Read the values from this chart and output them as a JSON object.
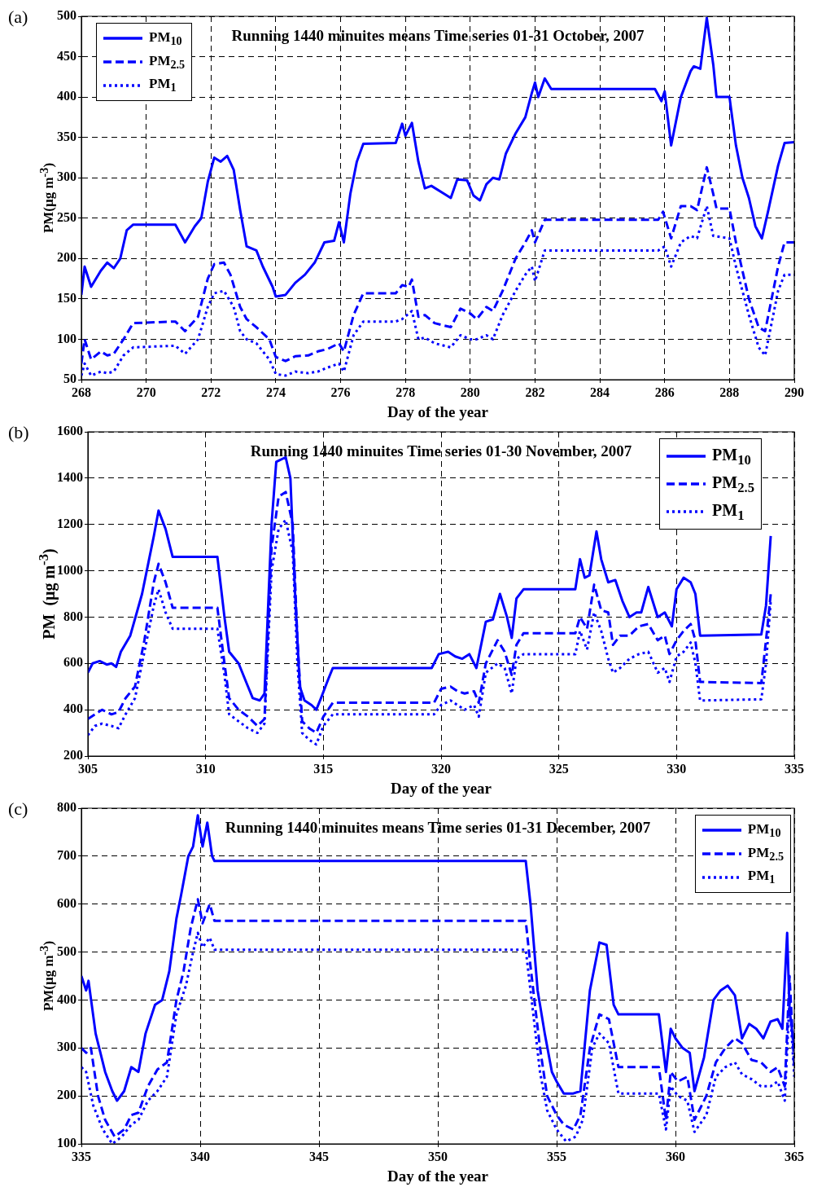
{
  "chart_data": [
    {
      "type": "line",
      "title": "Running 1440 minuites means Time series 01-31 October, 2007",
      "xlabel": "Day of the year",
      "ylabel": "PM(μg m$^{-3}$)",
      "xlim": [
        268,
        290
      ],
      "ylim": [
        50,
        500
      ],
      "xticks": [
        268,
        270,
        272,
        274,
        276,
        278,
        280,
        282,
        284,
        286,
        288,
        290
      ],
      "yticks": [
        50,
        100,
        150,
        200,
        250,
        300,
        350,
        400,
        450,
        500
      ],
      "grid": true,
      "legend": "top left",
      "annotations": [
        "(a)"
      ],
      "series": [
        {
          "name": "PM$_{10}$",
          "color": "#0000ff",
          "line_style": "solid",
          "x": [
            268,
            268.1,
            268.3,
            268.6,
            268.8,
            269,
            269.2,
            269.4,
            269.6,
            270.9,
            271.2,
            271.5,
            271.7,
            271.9,
            272.1,
            272.3,
            272.5,
            272.7,
            272.9,
            273.1,
            273.4,
            273.6,
            273.9,
            274,
            274.3,
            274.6,
            274.9,
            275.2,
            275.5,
            275.8,
            275.95,
            276.1,
            276.3,
            276.5,
            276.7,
            277.7,
            277.9,
            278,
            278.2,
            278.4,
            278.6,
            278.8,
            279.2,
            279.4,
            279.6,
            279.9,
            280.1,
            280.3,
            280.5,
            280.7,
            280.9,
            281.1,
            281.4,
            281.7,
            281.9,
            282,
            282.1,
            282.3,
            282.5,
            285.7,
            285.9,
            286,
            286.2,
            286.5,
            286.8,
            286.9,
            287.1,
            287.3,
            287.5,
            287.6,
            288,
            288.2,
            288.4,
            288.6,
            288.8,
            289,
            289.2,
            289.5,
            289.7,
            290
          ],
          "values": [
            155,
            190,
            165,
            185,
            195,
            188,
            200,
            235,
            242,
            242,
            220,
            240,
            250,
            295,
            325,
            320,
            327,
            310,
            260,
            215,
            210,
            190,
            165,
            153,
            155,
            170,
            180,
            195,
            220,
            222,
            245,
            220,
            280,
            320,
            342,
            343,
            367,
            352,
            368,
            320,
            287,
            290,
            280,
            275,
            298,
            297,
            278,
            272,
            292,
            300,
            298,
            330,
            355,
            375,
            405,
            418,
            400,
            423,
            410,
            410,
            395,
            407,
            340,
            400,
            432,
            438,
            435,
            498,
            440,
            400,
            400,
            340,
            300,
            275,
            240,
            225,
            260,
            315,
            343,
            344
          ]
        },
        {
          "name": "PM$_{2.5}$",
          "color": "#0000ff",
          "line_style": "dashed",
          "x": [
            268,
            268.1,
            268.3,
            268.6,
            268.8,
            269,
            269.3,
            269.6,
            270.9,
            271.2,
            271.6,
            271.9,
            272.1,
            272.4,
            272.6,
            272.9,
            273.1,
            273.4,
            273.8,
            274,
            274.3,
            274.6,
            275,
            275.3,
            275.6,
            275.95,
            276.1,
            276.4,
            276.7,
            277.7,
            277.9,
            278.1,
            278.2,
            278.4,
            278.6,
            278.9,
            279.4,
            279.7,
            280,
            280.2,
            280.5,
            280.7,
            281,
            281.4,
            281.7,
            281.9,
            282,
            282.3,
            285.8,
            285.95,
            286.2,
            286.5,
            286.8,
            287,
            287.3,
            287.5,
            287.6,
            288,
            288.2,
            288.6,
            288.9,
            289.1,
            289.5,
            289.7,
            290
          ],
          "values": [
            70,
            100,
            75,
            85,
            80,
            82,
            100,
            120,
            122,
            110,
            128,
            175,
            193,
            195,
            180,
            140,
            125,
            115,
            100,
            78,
            73,
            79,
            80,
            85,
            88,
            95,
            85,
            130,
            157,
            157,
            167,
            165,
            174,
            128,
            130,
            120,
            115,
            138,
            132,
            125,
            140,
            135,
            160,
            200,
            220,
            235,
            220,
            248,
            248,
            258,
            225,
            265,
            265,
            260,
            313,
            280,
            262,
            262,
            220,
            150,
            115,
            110,
            190,
            220,
            220
          ]
        },
        {
          "name": "PM$_{1}$",
          "color": "#0000ff",
          "line_style": "dotted",
          "x": [
            268,
            268.1,
            268.3,
            268.6,
            268.8,
            269,
            269.3,
            269.6,
            270.9,
            271.2,
            271.6,
            271.9,
            272.1,
            272.4,
            272.7,
            272.9,
            273.1,
            273.4,
            273.8,
            274,
            274.3,
            274.6,
            275,
            275.3,
            275.6,
            275.95,
            276.1,
            276.4,
            276.7,
            277.7,
            277.9,
            278.2,
            278.4,
            278.6,
            278.9,
            279.4,
            279.7,
            280,
            280.2,
            280.5,
            280.7,
            281,
            281.4,
            281.7,
            281.9,
            282,
            282.3,
            285.8,
            286,
            286.2,
            286.5,
            286.8,
            287,
            287.3,
            287.5,
            288,
            288.2,
            288.6,
            288.9,
            289.1,
            289.5,
            289.7,
            290
          ],
          "values": [
            55,
            70,
            55,
            60,
            58,
            60,
            80,
            90,
            92,
            82,
            100,
            140,
            157,
            160,
            140,
            110,
            100,
            95,
            75,
            57,
            55,
            60,
            58,
            60,
            65,
            70,
            60,
            105,
            122,
            122,
            125,
            135,
            100,
            102,
            95,
            90,
            105,
            100,
            100,
            105,
            100,
            130,
            160,
            180,
            190,
            172,
            210,
            210,
            215,
            190,
            220,
            228,
            225,
            265,
            228,
            225,
            190,
            130,
            90,
            80,
            160,
            180,
            180
          ]
        }
      ]
    },
    {
      "type": "line",
      "title": "Running 1440 minuites Time series 01-30 November, 2007",
      "xlabel": "Day of the year",
      "ylabel": "PM  (μg m$^{-3}$)",
      "xlim": [
        305,
        335
      ],
      "ylim": [
        200,
        1600
      ],
      "xticks": [
        305,
        310,
        315,
        320,
        325,
        330,
        335
      ],
      "yticks": [
        200,
        400,
        600,
        800,
        1000,
        1200,
        1400,
        1600
      ],
      "grid": true,
      "legend": "top right",
      "annotations": [
        "(b)"
      ],
      "series": [
        {
          "name": "PM$_{10}$",
          "color": "#0000ff",
          "line_style": "solid",
          "x": [
            305,
            305.2,
            305.5,
            305.8,
            306,
            306.2,
            306.4,
            306.8,
            307.3,
            307.6,
            307.8,
            308,
            308.3,
            308.6,
            310.5,
            310.8,
            311,
            311.4,
            311.8,
            312,
            312.3,
            312.5,
            312.8,
            313,
            313.4,
            313.6,
            313.8,
            314,
            314.2,
            314.5,
            314.7,
            314.9,
            315.2,
            315.4,
            319.6,
            319.9,
            320.3,
            320.6,
            320.9,
            321.2,
            321.5,
            321.9,
            322.2,
            322.5,
            322.8,
            323,
            323.2,
            323.5,
            325.7,
            325.9,
            326.1,
            326.3,
            326.6,
            326.8,
            327.1,
            327.4,
            327.7,
            328,
            328.3,
            328.5,
            328.8,
            329.2,
            329.5,
            329.8,
            330,
            330.3,
            330.6,
            330.8,
            331,
            333.6,
            333.8,
            333.9,
            334
          ],
          "values": [
            560,
            600,
            610,
            595,
            600,
            585,
            650,
            720,
            900,
            1050,
            1150,
            1260,
            1180,
            1060,
            1060,
            800,
            650,
            600,
            500,
            450,
            440,
            470,
            1200,
            1470,
            1490,
            1400,
            900,
            500,
            440,
            420,
            400,
            450,
            530,
            580,
            580,
            640,
            650,
            630,
            620,
            640,
            580,
            780,
            790,
            900,
            800,
            710,
            880,
            920,
            920,
            1050,
            970,
            980,
            1170,
            1050,
            950,
            960,
            870,
            800,
            820,
            820,
            930,
            800,
            820,
            760,
            920,
            970,
            950,
            900,
            720,
            725,
            850,
            1000,
            1150
          ]
        },
        {
          "name": "PM$_{2.5}$",
          "color": "#0000ff",
          "line_style": "dashed",
          "x": [
            305,
            305.3,
            305.6,
            306,
            306.3,
            306.6,
            307,
            307.4,
            307.8,
            308,
            308.3,
            308.6,
            310.5,
            310.8,
            311,
            311.4,
            311.8,
            312.2,
            312.5,
            312.8,
            313.1,
            313.4,
            313.7,
            313.9,
            314.1,
            314.4,
            314.7,
            315,
            315.4,
            319.7,
            320,
            320.4,
            320.7,
            321,
            321.4,
            321.6,
            321.9,
            322.4,
            322.7,
            323,
            323.2,
            323.5,
            325.7,
            325.9,
            326.2,
            326.5,
            326.8,
            327.1,
            327.3,
            327.6,
            328,
            328.4,
            328.8,
            329.2,
            329.5,
            329.7,
            330,
            330.3,
            330.6,
            330.8,
            331,
            333.6,
            333.8,
            334
          ],
          "values": [
            360,
            380,
            400,
            380,
            390,
            450,
            500,
            700,
            950,
            1030,
            950,
            840,
            840,
            600,
            450,
            400,
            370,
            330,
            360,
            1100,
            1320,
            1340,
            1200,
            700,
            350,
            320,
            300,
            370,
            430,
            430,
            490,
            500,
            480,
            470,
            480,
            430,
            600,
            700,
            650,
            550,
            680,
            730,
            730,
            800,
            750,
            940,
            830,
            820,
            680,
            720,
            720,
            760,
            770,
            700,
            720,
            640,
            700,
            740,
            770,
            700,
            520,
            515,
            700,
            900
          ]
        },
        {
          "name": "PM$_{1}$",
          "color": "#0000ff",
          "line_style": "dotted",
          "x": [
            305,
            305.3,
            305.6,
            306,
            306.3,
            306.6,
            307,
            307.4,
            307.8,
            308,
            308.3,
            308.6,
            310.5,
            310.8,
            311,
            311.4,
            311.8,
            312.2,
            312.5,
            312.8,
            313.1,
            313.4,
            313.7,
            313.9,
            314.1,
            314.4,
            314.7,
            315,
            315.4,
            319.7,
            320,
            320.4,
            320.7,
            321,
            321.4,
            321.6,
            321.9,
            322.4,
            322.7,
            323,
            323.2,
            323.5,
            325.7,
            325.9,
            326.2,
            326.5,
            326.8,
            327.1,
            327.3,
            327.6,
            328,
            328.4,
            328.8,
            329.2,
            329.5,
            329.7,
            330,
            330.3,
            330.6,
            330.8,
            331,
            333.6,
            333.8,
            334
          ],
          "values": [
            290,
            330,
            340,
            330,
            320,
            380,
            450,
            650,
            850,
            920,
            820,
            750,
            750,
            550,
            380,
            350,
            320,
            300,
            340,
            1000,
            1180,
            1220,
            1080,
            600,
            300,
            270,
            250,
            330,
            380,
            380,
            420,
            440,
            420,
            400,
            420,
            370,
            560,
            600,
            580,
            470,
            620,
            640,
            640,
            740,
            660,
            820,
            740,
            620,
            560,
            580,
            620,
            640,
            650,
            560,
            580,
            520,
            630,
            650,
            690,
            600,
            440,
            445,
            600,
            870
          ]
        }
      ]
    },
    {
      "type": "line",
      "title": "Running 1440 minuites means Time series 01-31 December, 2007",
      "xlabel": "Day of the year",
      "ylabel": "PM(μg m$^{-3}$)",
      "xlim": [
        335,
        365
      ],
      "ylim": [
        100,
        800
      ],
      "xticks": [
        335,
        340,
        345,
        350,
        355,
        360,
        365
      ],
      "yticks": [
        100,
        200,
        300,
        400,
        500,
        600,
        700,
        800
      ],
      "grid": true,
      "legend": "top right",
      "annotations": [
        "(c)"
      ],
      "series": [
        {
          "name": "PM$_{10}$",
          "color": "#0000ff",
          "line_style": "solid",
          "x": [
            335,
            335.2,
            335.3,
            335.6,
            336,
            336.3,
            336.5,
            336.8,
            337.1,
            337.4,
            337.7,
            338.1,
            338.4,
            338.7,
            339,
            339.2,
            339.5,
            339.7,
            339.9,
            340.1,
            340.3,
            340.5,
            340.6,
            353.7,
            353.9,
            354.2,
            354.5,
            354.8,
            355,
            355.3,
            355.7,
            356,
            356.4,
            356.8,
            357.1,
            357.4,
            357.6,
            359.3,
            359.6,
            359.8,
            360,
            360.3,
            360.6,
            360.8,
            361.2,
            361.6,
            361.9,
            362.2,
            362.5,
            362.8,
            363.1,
            363.4,
            363.7,
            364,
            364.3,
            364.5,
            364.7,
            364.8,
            365
          ],
          "values": [
            450,
            420,
            440,
            330,
            250,
            210,
            190,
            210,
            260,
            250,
            330,
            390,
            400,
            460,
            570,
            620,
            700,
            720,
            785,
            720,
            770,
            700,
            690,
            690,
            600,
            420,
            330,
            250,
            230,
            205,
            205,
            210,
            420,
            520,
            515,
            390,
            370,
            370,
            250,
            340,
            320,
            300,
            290,
            210,
            280,
            400,
            420,
            430,
            410,
            320,
            350,
            340,
            320,
            355,
            360,
            340,
            540,
            380,
            300
          ]
        },
        {
          "name": "PM$_{2.5}$",
          "color": "#0000ff",
          "line_style": "dashed",
          "x": [
            335,
            335.2,
            335.4,
            335.7,
            336,
            336.4,
            336.8,
            337.1,
            337.4,
            337.8,
            338.2,
            338.6,
            339,
            339.3,
            339.6,
            339.9,
            340.1,
            340.4,
            340.6,
            353.7,
            353.9,
            354.3,
            354.6,
            355,
            355.3,
            355.7,
            356,
            356.4,
            356.8,
            357.2,
            357.6,
            359.3,
            359.6,
            359.8,
            360.1,
            360.5,
            360.8,
            361.3,
            361.7,
            362.1,
            362.5,
            362.8,
            363.2,
            363.6,
            364,
            364.3,
            364.6,
            364.8,
            365
          ],
          "values": [
            300,
            290,
            300,
            200,
            150,
            115,
            130,
            160,
            165,
            220,
            255,
            270,
            400,
            460,
            550,
            610,
            560,
            600,
            565,
            565,
            470,
            300,
            200,
            160,
            140,
            130,
            160,
            300,
            370,
            360,
            260,
            260,
            150,
            250,
            230,
            240,
            150,
            200,
            270,
            300,
            320,
            310,
            275,
            270,
            250,
            260,
            220,
            450,
            260
          ]
        },
        {
          "name": "PM$_{1}$",
          "color": "#0000ff",
          "line_style": "dotted",
          "x": [
            335,
            335.2,
            335.5,
            335.9,
            336.3,
            336.7,
            337.1,
            337.4,
            337.8,
            338.2,
            338.6,
            339,
            339.4,
            339.7,
            339.9,
            340.1,
            340.4,
            340.6,
            353.7,
            353.9,
            354.3,
            354.6,
            355,
            355.4,
            355.8,
            356.1,
            356.5,
            356.8,
            357.2,
            357.6,
            359.3,
            359.6,
            359.8,
            360.1,
            360.5,
            360.8,
            361.3,
            361.7,
            362.1,
            362.5,
            362.8,
            363.2,
            363.6,
            364,
            364.3,
            364.6,
            364.8,
            365
          ],
          "values": [
            260,
            250,
            180,
            130,
            100,
            115,
            140,
            150,
            190,
            210,
            240,
            370,
            430,
            500,
            540,
            510,
            530,
            505,
            505,
            420,
            250,
            170,
            130,
            105,
            115,
            150,
            300,
            330,
            310,
            205,
            205,
            130,
            220,
            200,
            190,
            125,
            160,
            240,
            260,
            270,
            245,
            235,
            220,
            220,
            230,
            190,
            400,
            240
          ]
        }
      ]
    }
  ]
}
